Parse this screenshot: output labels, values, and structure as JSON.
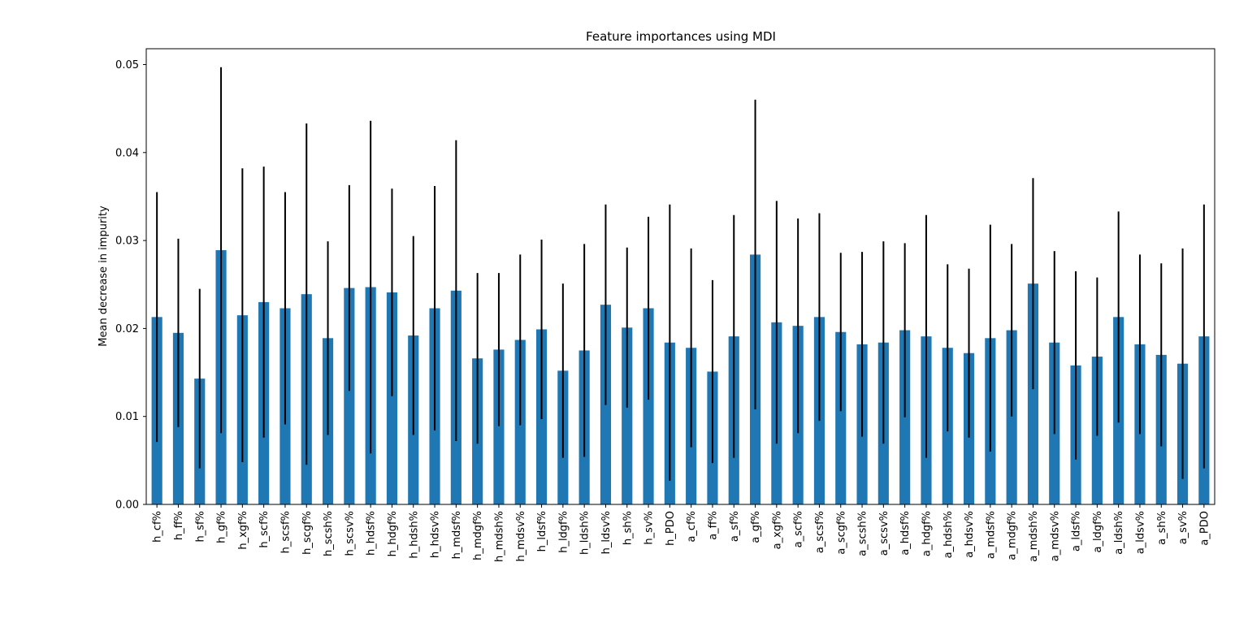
{
  "chart_data": {
    "type": "bar",
    "title": "Feature importances using MDI",
    "xlabel": "",
    "ylabel": "Mean decrease in impurity",
    "ylim": [
      0,
      0.0518
    ],
    "yticks": [
      "0.00",
      "0.01",
      "0.02",
      "0.03",
      "0.04",
      "0.05"
    ],
    "ytick_values": [
      0,
      0.01,
      0.02,
      0.03,
      0.04,
      0.05
    ],
    "grid": false,
    "bar_color": "#1f77b4",
    "error_color": "#000000",
    "categories": [
      "h_cf%",
      "h_ff%",
      "h_sf%",
      "h_gf%",
      "h_xgf%",
      "h_scf%",
      "h_scsf%",
      "h_scgf%",
      "h_scsh%",
      "h_scsv%",
      "h_hdsf%",
      "h_hdgf%",
      "h_hdsh%",
      "h_hdsv%",
      "h_mdsf%",
      "h_mdgf%",
      "h_mdsh%",
      "h_mdsv%",
      "h_ldsf%",
      "h_ldgf%",
      "h_ldsh%",
      "h_ldsv%",
      "h_sh%",
      "h_sv%",
      "h_PDO",
      "a_cf%",
      "a_ff%",
      "a_sf%",
      "a_gf%",
      "a_xgf%",
      "a_scf%",
      "a_scsf%",
      "a_scgf%",
      "a_scsh%",
      "a_scsv%",
      "a_hdsf%",
      "a_hdgf%",
      "a_hdsh%",
      "a_hdsv%",
      "a_mdsf%",
      "a_mdgf%",
      "a_mdsh%",
      "a_mdsv%",
      "a_ldsf%",
      "a_ldgf%",
      "a_ldsh%",
      "a_ldsv%",
      "a_sh%",
      "a_sv%",
      "a_PDO"
    ],
    "values": [
      0.0213,
      0.0195,
      0.0143,
      0.0289,
      0.0215,
      0.023,
      0.0223,
      0.0239,
      0.0189,
      0.0246,
      0.0247,
      0.0241,
      0.0192,
      0.0223,
      0.0243,
      0.0166,
      0.0176,
      0.0187,
      0.0199,
      0.0152,
      0.0175,
      0.0227,
      0.0201,
      0.0223,
      0.0184,
      0.0178,
      0.0151,
      0.0191,
      0.0284,
      0.0207,
      0.0203,
      0.0213,
      0.0196,
      0.0182,
      0.0184,
      0.0198,
      0.0191,
      0.0178,
      0.0172,
      0.0189,
      0.0198,
      0.0251,
      0.0184,
      0.0158,
      0.0168,
      0.0213,
      0.0182,
      0.017,
      0.016,
      0.0191
    ],
    "errors": [
      0.0142,
      0.0107,
      0.0102,
      0.0208,
      0.0167,
      0.0154,
      0.0132,
      0.0194,
      0.011,
      0.0117,
      0.0189,
      0.0118,
      0.0113,
      0.0139,
      0.0171,
      0.0097,
      0.0087,
      0.0097,
      0.0102,
      0.0099,
      0.0121,
      0.0114,
      0.0091,
      0.0104,
      0.0157,
      0.0113,
      0.0104,
      0.0138,
      0.0176,
      0.0138,
      0.0122,
      0.0118,
      0.009,
      0.0105,
      0.0115,
      0.0099,
      0.0138,
      0.0095,
      0.0096,
      0.0129,
      0.0098,
      0.012,
      0.0104,
      0.0107,
      0.009,
      0.012,
      0.0102,
      0.0104,
      0.0131,
      0.015
    ]
  }
}
